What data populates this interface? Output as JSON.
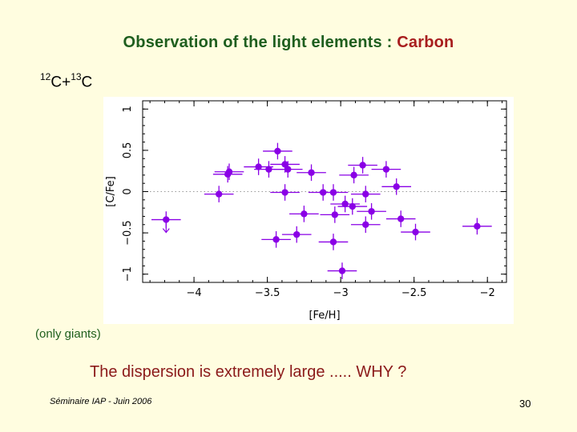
{
  "slide": {
    "title_main": "Observation of the light elements : ",
    "title_accent": "Carbon",
    "isotope_a": "12",
    "isotope_b": "C+",
    "isotope_c": "13",
    "isotope_d": "C",
    "note": "(only giants)",
    "question": "The dispersion is extremely large .....   WHY ?",
    "footer": "Séminaire IAP -   Juin 2006",
    "page_number": "30"
  },
  "colors": {
    "title_green": "#1E5E1E",
    "title_red": "#A81E1E",
    "marker": "#8A00E6",
    "background": "#FFFDE0"
  },
  "chart_data": {
    "type": "scatter",
    "xlabel": "[Fe/H]",
    "ylabel": "[C/Fe]",
    "xlim": [
      -4.35,
      -1.87
    ],
    "ylim": [
      -1.1,
      1.1
    ],
    "xticks": [
      -4,
      -3.5,
      -3,
      -2.5,
      -2
    ],
    "xtick_labels": [
      "−4",
      "−3.5",
      "−3",
      "−2.5",
      "−2"
    ],
    "yticks": [
      -1,
      -0.5,
      0,
      0.5,
      1
    ],
    "ytick_labels": [
      "−1",
      "−0.5",
      "0",
      "0.5",
      "1"
    ],
    "reference_line_y": 0,
    "grid": false,
    "error_bars": {
      "x": 0.1,
      "y": 0.1
    },
    "upper_limits": [
      {
        "x": -4.19,
        "y": -0.34
      }
    ],
    "points": [
      {
        "x": -4.19,
        "y": -0.34
      },
      {
        "x": -3.83,
        "y": -0.03
      },
      {
        "x": -3.77,
        "y": 0.21
      },
      {
        "x": -3.76,
        "y": 0.24
      },
      {
        "x": -3.56,
        "y": 0.3
      },
      {
        "x": -3.49,
        "y": 0.27
      },
      {
        "x": -3.43,
        "y": 0.49
      },
      {
        "x": -3.44,
        "y": -0.58
      },
      {
        "x": -3.38,
        "y": 0.33
      },
      {
        "x": -3.36,
        "y": 0.27
      },
      {
        "x": -3.38,
        "y": -0.01
      },
      {
        "x": -3.3,
        "y": -0.52
      },
      {
        "x": -3.25,
        "y": -0.27
      },
      {
        "x": -3.2,
        "y": 0.23
      },
      {
        "x": -3.12,
        "y": -0.01
      },
      {
        "x": -3.05,
        "y": -0.01
      },
      {
        "x": -3.04,
        "y": -0.28
      },
      {
        "x": -3.05,
        "y": -0.61
      },
      {
        "x": -2.99,
        "y": -0.96
      },
      {
        "x": -2.97,
        "y": -0.15
      },
      {
        "x": -2.92,
        "y": -0.18
      },
      {
        "x": -2.91,
        "y": 0.2
      },
      {
        "x": -2.85,
        "y": 0.32
      },
      {
        "x": -2.83,
        "y": -0.03
      },
      {
        "x": -2.83,
        "y": -0.4
      },
      {
        "x": -2.79,
        "y": -0.24
      },
      {
        "x": -2.69,
        "y": 0.27
      },
      {
        "x": -2.62,
        "y": 0.06
      },
      {
        "x": -2.59,
        "y": -0.33
      },
      {
        "x": -2.49,
        "y": -0.49
      },
      {
        "x": -2.07,
        "y": -0.42
      }
    ]
  }
}
